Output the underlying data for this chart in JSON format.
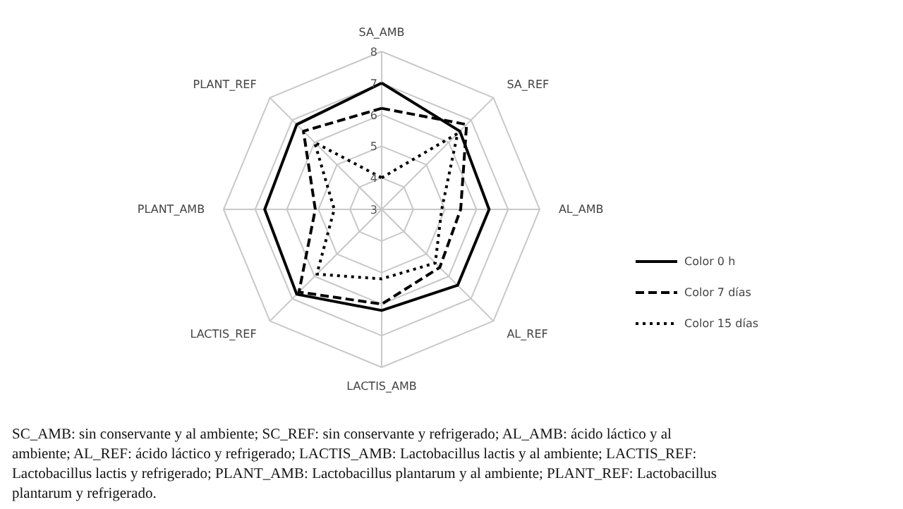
{
  "chart_data": {
    "type": "radar",
    "categories": [
      "SA_AMB",
      "SA_REF",
      "AL_AMB",
      "AL_REF",
      "LACTIS_AMB",
      "LACTIS_REF",
      "PLANT_AMB",
      "PLANT_REF"
    ],
    "series": [
      {
        "name": "Color 0 h",
        "color": "#000000",
        "line_style": "solid",
        "values": [
          7.0,
          6.5,
          6.4,
          6.4,
          6.2,
          6.8,
          6.7,
          6.8
        ]
      },
      {
        "name": "Color 7 días",
        "color": "#000000",
        "line_style": "dashed",
        "values": [
          6.2,
          6.8,
          5.5,
          5.6,
          6.0,
          6.7,
          5.1,
          6.5
        ]
      },
      {
        "name": "Color 15 días",
        "color": "#000000",
        "line_style": "dotted",
        "values": [
          4.0,
          6.4,
          4.9,
          5.4,
          5.2,
          5.9,
          4.5,
          6.0
        ]
      }
    ],
    "ylim": [
      3,
      8
    ],
    "yticks": [
      3,
      4,
      5,
      6,
      7,
      8
    ],
    "grid": true,
    "legend": "right",
    "marker": "none",
    "annotations": [
      "SC_AMB: sin conservante y al ambiente; SC_REF: sin conservante y refrigerado; AL_AMB: ácido láctico y al ambiente; AL_REF: ácido láctico y refrigerado; LACTIS_AMB: Lactobacillus lactis y al ambiente; LACTIS_REF: Lactobacillus lactis y refrigerado; PLANT_AMB: Lactobacillus plantarum y al ambiente; PLANT_REF: Lactobacillus plantarum y refrigerado."
    ]
  }
}
